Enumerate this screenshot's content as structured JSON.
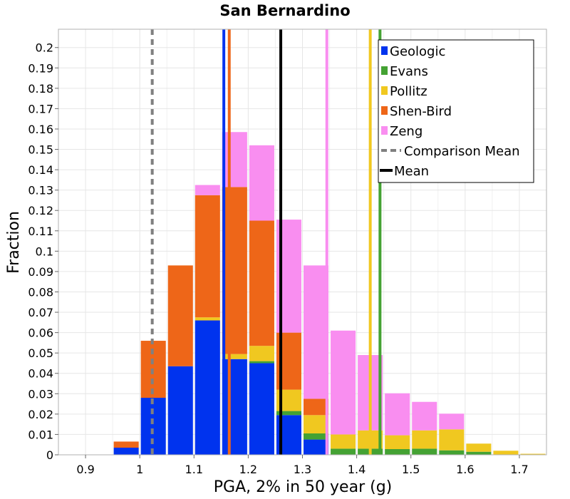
{
  "chart_data": {
    "type": "bar",
    "stacked": true,
    "title": "San Bernardino",
    "xlabel": "PGA, 2% in 50 year (g)",
    "ylabel": "Fraction",
    "xlim": [
      0.85,
      1.75
    ],
    "ylim": [
      0,
      0.209
    ],
    "bin_width": 0.05,
    "x_ticks": [
      0.9,
      1.0,
      1.1,
      1.2,
      1.3,
      1.4,
      1.5,
      1.6,
      1.7
    ],
    "x_tick_labels": [
      "0.9",
      "1",
      "1.1",
      "1.2",
      "1.3",
      "1.4",
      "1.5",
      "1.6",
      "1.7"
    ],
    "y_ticks": [
      0,
      0.01,
      0.02,
      0.03,
      0.04,
      0.05,
      0.06,
      0.07,
      0.08,
      0.09,
      0.1,
      0.11,
      0.12,
      0.13,
      0.14,
      0.15,
      0.16,
      0.17,
      0.18,
      0.19,
      0.2
    ],
    "y_tick_labels": [
      "0",
      "0.01",
      "0.02",
      "0.03",
      "0.04",
      "0.05",
      "0.06",
      "0.07",
      "0.08",
      "0.09",
      "0.1",
      "0.11",
      "0.12",
      "0.13",
      "0.14",
      "0.15",
      "0.16",
      "0.17",
      "0.18",
      "0.19",
      "0.2"
    ],
    "bin_centers": [
      0.975,
      1.025,
      1.075,
      1.125,
      1.175,
      1.225,
      1.275,
      1.325,
      1.375,
      1.425,
      1.475,
      1.525,
      1.575,
      1.625,
      1.675,
      1.725
    ],
    "stack_order": [
      "Geologic",
      "Evans",
      "Pollitz",
      "Shen-Bird",
      "Zeng"
    ],
    "series": [
      {
        "name": "Geologic",
        "color": "#0033ee",
        "values": [
          0.0035,
          0.028,
          0.0435,
          0.066,
          0.047,
          0.045,
          0.0195,
          0.0075,
          0,
          0,
          0,
          0,
          0,
          0,
          0,
          0
        ]
      },
      {
        "name": "Evans",
        "color": "#44a233",
        "values": [
          0,
          0,
          0,
          0,
          0,
          0.001,
          0.002,
          0.003,
          0.003,
          0.003,
          0.0028,
          0.003,
          0.0022,
          0.0015,
          0,
          0
        ]
      },
      {
        "name": "Pollitz",
        "color": "#f0c820",
        "values": [
          0,
          0,
          0,
          0.0015,
          0.0025,
          0.0075,
          0.0105,
          0.009,
          0.007,
          0.009,
          0.0068,
          0.009,
          0.0103,
          0.004,
          0.002,
          0.0005
        ]
      },
      {
        "name": "Shen-Bird",
        "color": "#ee6618",
        "values": [
          0.003,
          0.028,
          0.0495,
          0.06,
          0.082,
          0.0615,
          0.028,
          0.008,
          0,
          0,
          0,
          0,
          0,
          0,
          0,
          0
        ]
      },
      {
        "name": "Zeng",
        "color": "#f98ef0",
        "values": [
          0,
          0,
          0,
          0.005,
          0.027,
          0.037,
          0.0555,
          0.0655,
          0.051,
          0.037,
          0.0206,
          0.014,
          0.0077,
          0,
          0,
          0
        ]
      }
    ],
    "vertical_lines": [
      {
        "name": "Geologic mean",
        "x": 1.155,
        "color": "#0033ee",
        "style": "solid"
      },
      {
        "name": "Shen-Bird mean",
        "x": 1.165,
        "color": "#ee6618",
        "style": "solid"
      },
      {
        "name": "Zeng mean",
        "x": 1.345,
        "color": "#f98ef0",
        "style": "solid"
      },
      {
        "name": "Pollitz mean",
        "x": 1.425,
        "color": "#f0c820",
        "style": "solid"
      },
      {
        "name": "Evans mean",
        "x": 1.443,
        "color": "#44a233",
        "style": "solid"
      },
      {
        "name": "Comparison Mean",
        "x": 1.023,
        "color": "#808080",
        "style": "dashed"
      },
      {
        "name": "Mean",
        "x": 1.26,
        "color": "#000000",
        "style": "solid"
      }
    ],
    "legend": {
      "position": "top-right",
      "entries": [
        {
          "label": "Geologic",
          "color": "#0033ee",
          "kind": "patch"
        },
        {
          "label": "Evans",
          "color": "#44a233",
          "kind": "patch"
        },
        {
          "label": "Pollitz",
          "color": "#f0c820",
          "kind": "patch"
        },
        {
          "label": "Shen-Bird",
          "color": "#ee6618",
          "kind": "patch"
        },
        {
          "label": "Zeng",
          "color": "#f98ef0",
          "kind": "patch"
        },
        {
          "label": "Comparison Mean",
          "color": "#808080",
          "kind": "dashed-line"
        },
        {
          "label": "Mean",
          "color": "#000000",
          "kind": "line"
        }
      ]
    },
    "grid": true
  }
}
